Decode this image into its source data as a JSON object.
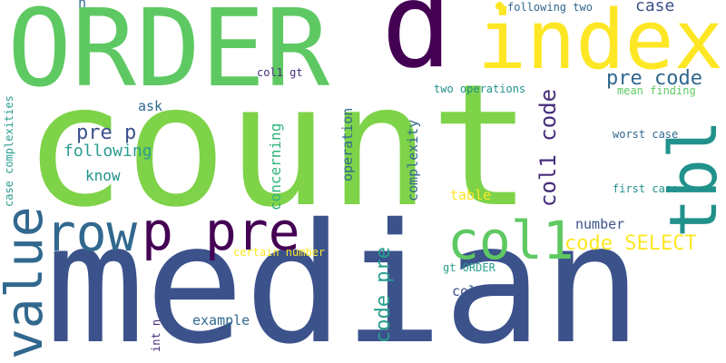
{
  "colors": {
    "lime": "#7ed348",
    "green": "#5ec962",
    "teal": "#21918c",
    "cyan": "#2a9d8f",
    "seafoam": "#2fb47c",
    "blue": "#3b528b",
    "navy": "#31688e",
    "purple": "#440154",
    "indigo": "#472d7b",
    "yellow": "#fde725",
    "chartreuse": "#b5de2b"
  },
  "words": {
    "count": "count",
    "median": "median",
    "order": "ORDER",
    "index": "index",
    "p": "p",
    "tbl": "tbl",
    "col1": "col1",
    "value": "value",
    "row": "row",
    "p_pre": "p pre",
    "code_select": "code SELECT",
    "col1_code": "col1 code",
    "code_pre": "code pre",
    "pre_code": "pre code",
    "pre_p": "pre p",
    "case_top": "case",
    "following": "following",
    "know": "know",
    "ask": "ask",
    "concerning": "concerning",
    "operation": "operation",
    "complexity": "complexity",
    "table": "table",
    "number": "number",
    "column": "column",
    "example": "example",
    "worst_case": "worst case",
    "first_case": "first case",
    "mean_finding": "mean finding",
    "two_operations": "two operations",
    "following_two": "following two",
    "case_complexities": "case complexities",
    "col1_gt": "col1 gt",
    "gt_order": "gt ORDER",
    "certain_number": "certain number",
    "int_n": "int n",
    "n_top": "n"
  }
}
